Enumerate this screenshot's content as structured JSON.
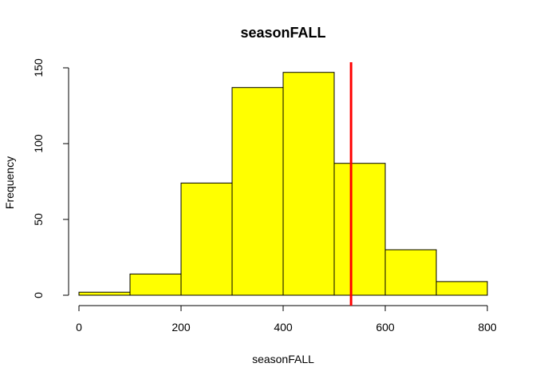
{
  "chart_data": {
    "type": "bar",
    "title": "seasonFALL",
    "xlabel": "seasonFALL",
    "ylabel": "Frequency",
    "xlim": [
      0,
      800
    ],
    "ylim": [
      0,
      150
    ],
    "x_ticks": [
      "0",
      "200",
      "400",
      "600",
      "800"
    ],
    "y_ticks": [
      "0",
      "50",
      "100",
      "150"
    ],
    "bins": [
      {
        "x0": 0,
        "x1": 100,
        "count": 2
      },
      {
        "x0": 100,
        "x1": 200,
        "count": 14
      },
      {
        "x0": 200,
        "x1": 300,
        "count": 74
      },
      {
        "x0": 300,
        "x1": 400,
        "count": 137
      },
      {
        "x0": 400,
        "x1": 500,
        "count": 147
      },
      {
        "x0": 500,
        "x1": 600,
        "count": 87
      },
      {
        "x0": 600,
        "x1": 700,
        "count": 30
      },
      {
        "x0": 700,
        "x1": 800,
        "count": 9
      }
    ],
    "reference_line": {
      "x": 533,
      "color": "#ff0000"
    },
    "bar_color": "#ffff00",
    "grid": false
  }
}
